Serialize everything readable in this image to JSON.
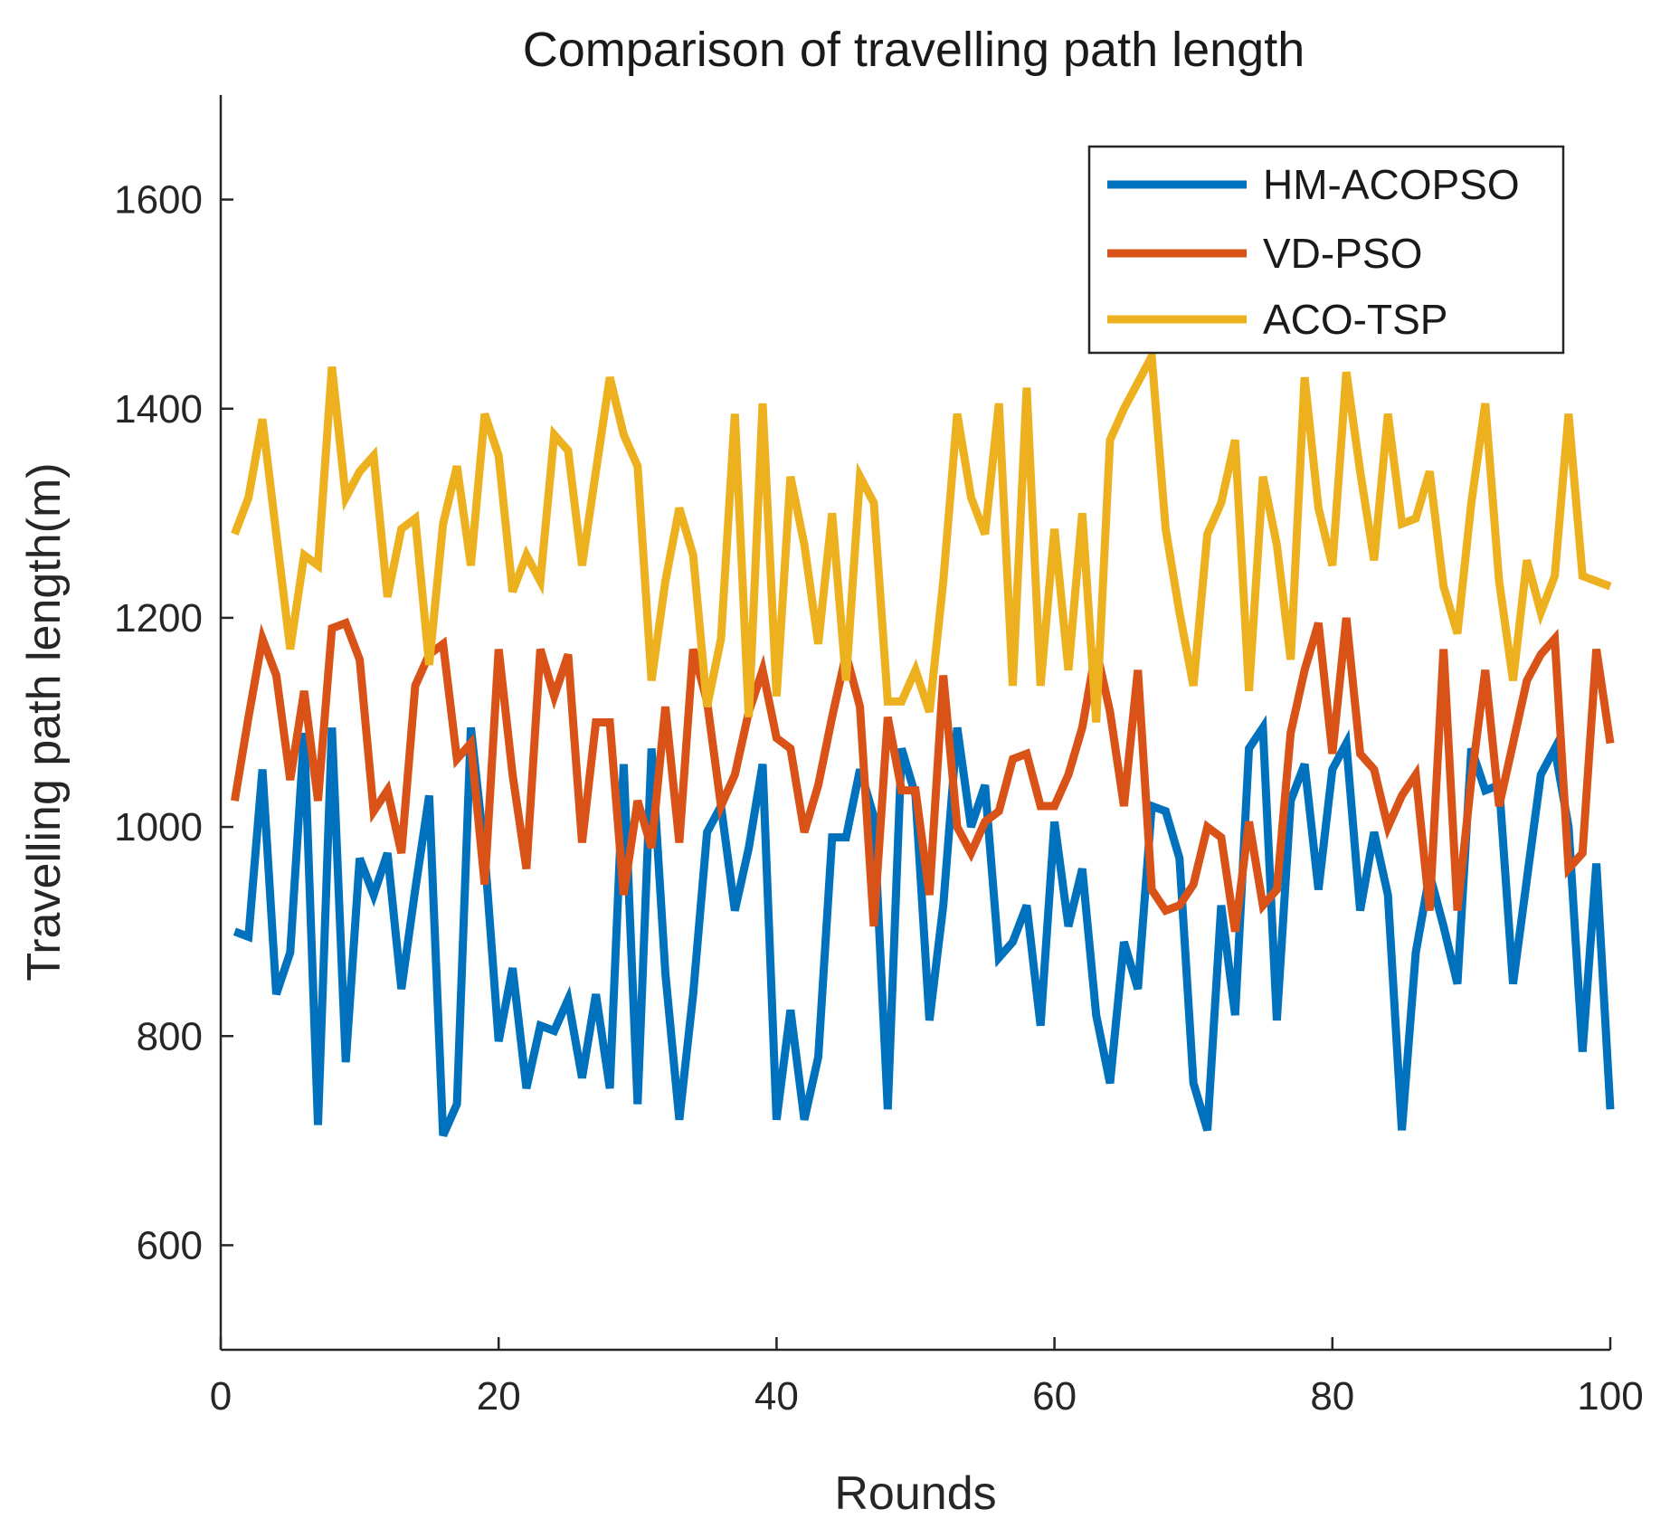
{
  "chart_data": {
    "type": "line",
    "title": "Comparison of travelling path length",
    "xlabel": "Rounds",
    "ylabel": "Travelling path length(m)",
    "xlim": [
      0,
      100
    ],
    "ylim": [
      500,
      1700
    ],
    "xticks": [
      0,
      20,
      40,
      60,
      80,
      100
    ],
    "yticks": [
      600,
      800,
      1000,
      1200,
      1400,
      1600
    ],
    "grid": false,
    "legend_position": "top-right",
    "x": [
      1,
      2,
      3,
      4,
      5,
      6,
      7,
      8,
      9,
      10,
      11,
      12,
      13,
      14,
      15,
      16,
      17,
      18,
      19,
      20,
      21,
      22,
      23,
      24,
      25,
      26,
      27,
      28,
      29,
      30,
      31,
      32,
      33,
      34,
      35,
      36,
      37,
      38,
      39,
      40,
      41,
      42,
      43,
      44,
      45,
      46,
      47,
      48,
      49,
      50,
      51,
      52,
      53,
      54,
      55,
      56,
      57,
      58,
      59,
      60,
      61,
      62,
      63,
      64,
      65,
      66,
      67,
      68,
      69,
      70,
      71,
      72,
      73,
      74,
      75,
      76,
      77,
      78,
      79,
      80,
      81,
      82,
      83,
      84,
      85,
      86,
      87,
      88,
      89,
      90,
      91,
      92,
      93,
      94,
      95,
      96,
      97,
      98,
      99,
      100
    ],
    "series": [
      {
        "name": "HM-ACOPSO",
        "color": "#0072BD",
        "values": [
          900,
          895,
          1055,
          840,
          880,
          1090,
          715,
          1095,
          775,
          970,
          935,
          975,
          845,
          940,
          1030,
          705,
          735,
          1095,
          975,
          795,
          865,
          750,
          810,
          805,
          835,
          760,
          840,
          750,
          1060,
          735,
          1075,
          860,
          720,
          840,
          995,
          1020,
          920,
          980,
          1060,
          720,
          825,
          720,
          780,
          990,
          990,
          1055,
          1010,
          730,
          1075,
          1030,
          815,
          925,
          1095,
          1000,
          1040,
          875,
          890,
          925,
          810,
          1005,
          905,
          960,
          820,
          755,
          890,
          845,
          1020,
          1015,
          970,
          755,
          710,
          925,
          820,
          1075,
          1095,
          815,
          1025,
          1060,
          940,
          1055,
          1080,
          920,
          995,
          935,
          710,
          880,
          955,
          905,
          850,
          1075,
          1035,
          1040,
          850,
          950,
          1050,
          1075,
          1000,
          785,
          965,
          730
        ]
      },
      {
        "name": "VD-PSO",
        "color": "#D95319",
        "values": [
          1025,
          1105,
          1180,
          1145,
          1045,
          1130,
          1025,
          1190,
          1195,
          1160,
          1015,
          1035,
          975,
          1135,
          1165,
          1175,
          1065,
          1080,
          945,
          1170,
          1050,
          960,
          1170,
          1125,
          1165,
          985,
          1100,
          1100,
          935,
          1025,
          980,
          1115,
          985,
          1170,
          1120,
          1020,
          1050,
          1110,
          1150,
          1085,
          1075,
          995,
          1040,
          1105,
          1165,
          1115,
          905,
          1105,
          1035,
          1035,
          935,
          1145,
          1000,
          975,
          1005,
          1015,
          1065,
          1070,
          1020,
          1020,
          1050,
          1095,
          1170,
          1110,
          1020,
          1150,
          940,
          920,
          925,
          945,
          1000,
          990,
          900,
          1005,
          925,
          940,
          1090,
          1150,
          1195,
          1070,
          1200,
          1070,
          1055,
          1000,
          1030,
          1050,
          920,
          1170,
          920,
          1045,
          1150,
          1020,
          1080,
          1140,
          1165,
          1180,
          960,
          975,
          1170,
          1080
        ]
      },
      {
        "name": "ACO-TSP",
        "color": "#EDB120",
        "values": [
          1280,
          1315,
          1390,
          1280,
          1170,
          1260,
          1250,
          1440,
          1315,
          1340,
          1355,
          1220,
          1285,
          1295,
          1155,
          1290,
          1345,
          1250,
          1395,
          1355,
          1225,
          1260,
          1235,
          1375,
          1360,
          1250,
          1340,
          1430,
          1375,
          1345,
          1140,
          1235,
          1305,
          1260,
          1115,
          1180,
          1395,
          1105,
          1405,
          1125,
          1335,
          1270,
          1175,
          1300,
          1140,
          1335,
          1310,
          1120,
          1120,
          1150,
          1110,
          1235,
          1395,
          1315,
          1280,
          1405,
          1135,
          1420,
          1135,
          1285,
          1150,
          1300,
          1100,
          1370,
          1400,
          1425,
          1450,
          1285,
          1205,
          1135,
          1280,
          1310,
          1370,
          1130,
          1335,
          1270,
          1160,
          1430,
          1305,
          1250,
          1435,
          1340,
          1255,
          1395,
          1290,
          1295,
          1340,
          1230,
          1185,
          1310,
          1405,
          1235,
          1140,
          1255,
          1205,
          1240,
          1395,
          1240,
          1235,
          1230
        ]
      }
    ]
  }
}
